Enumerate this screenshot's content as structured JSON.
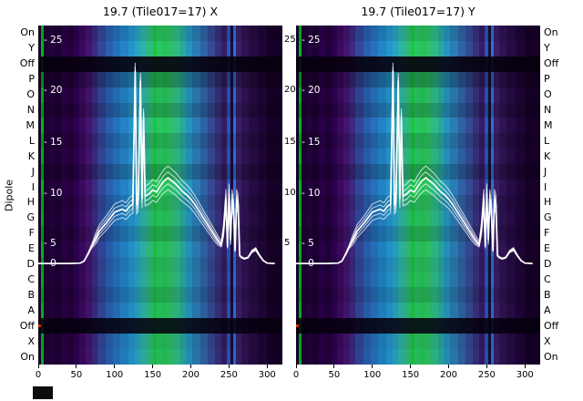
{
  "panels": [
    {
      "title": "19.7 (Tile017=17) X"
    },
    {
      "title": "19.7 (Tile017=17) Y"
    }
  ],
  "y_axis": {
    "label": "Dipole"
  },
  "x_axis": {
    "tick_labels": [
      "0",
      "50",
      "100",
      "150",
      "200",
      "250",
      "300"
    ],
    "tick_values": [
      0,
      50,
      100,
      150,
      200,
      250,
      300
    ],
    "data_max": 320
  },
  "value_axis": {
    "inner_labels": [
      "- 25",
      "- 20",
      "- 15",
      "- 10",
      "- 5",
      "- 0"
    ],
    "gap_labels": [
      "25",
      "20",
      "15",
      "10",
      "5"
    ],
    "tick_values": [
      25,
      20,
      15,
      10,
      5,
      0
    ]
  },
  "chart_data": {
    "type": "heatmap",
    "subtype": "dipole-spectrum-waterfall-with-line-overlay",
    "x_range": [
      0,
      320
    ],
    "value_range": [
      0,
      25
    ],
    "value_tick_y": [
      17,
      72,
      129,
      185,
      240,
      262
    ],
    "rows": [
      {
        "label": "On",
        "shade": 0.1
      },
      {
        "label": "Y",
        "shade": 0.0
      },
      {
        "label": "Off",
        "shade": 0.9,
        "off": true
      },
      {
        "label": "P",
        "shade": 0.28
      },
      {
        "label": "O",
        "shade": 0.06
      },
      {
        "label": "N",
        "shade": 0.2
      },
      {
        "label": "M",
        "shade": 0.0
      },
      {
        "label": "L",
        "shade": 0.14
      },
      {
        "label": "K",
        "shade": 0.04
      },
      {
        "label": "J",
        "shade": 0.22
      },
      {
        "label": "I",
        "shade": 0.0
      },
      {
        "label": "H",
        "shade": 0.12
      },
      {
        "label": "G",
        "shade": 0.05
      },
      {
        "label": "F",
        "shade": 0.18
      },
      {
        "label": "E",
        "shade": 0.03
      },
      {
        "label": "D",
        "shade": 0.1
      },
      {
        "label": "C",
        "shade": 0.06
      },
      {
        "label": "B",
        "shade": 0.16
      },
      {
        "label": "A",
        "shade": 0.05
      },
      {
        "label": "Off",
        "shade": 0.88,
        "off": true
      },
      {
        "label": "X",
        "shade": 0.1
      },
      {
        "label": "On",
        "shade": 0.06
      }
    ],
    "colormap_bands": [
      [
        0,
        4,
        "#160025"
      ],
      [
        4,
        7,
        "#00b42a"
      ],
      [
        7,
        14,
        "#1d0033"
      ],
      [
        14,
        22,
        "#260040"
      ],
      [
        22,
        30,
        "#1d0033"
      ],
      [
        30,
        38,
        "#2a0047"
      ],
      [
        38,
        46,
        "#22003b"
      ],
      [
        46,
        54,
        "#2f0052"
      ],
      [
        54,
        62,
        "#3a0a60"
      ],
      [
        62,
        70,
        "#44156e"
      ],
      [
        70,
        78,
        "#3c2a80"
      ],
      [
        78,
        88,
        "#31479a"
      ],
      [
        88,
        98,
        "#2a5fae"
      ],
      [
        98,
        108,
        "#2472bc"
      ],
      [
        108,
        118,
        "#2383c6"
      ],
      [
        118,
        126,
        "#2495cc"
      ],
      [
        126,
        134,
        "#27a3c4"
      ],
      [
        134,
        142,
        "#2fb2a6"
      ],
      [
        142,
        150,
        "#2fbc78"
      ],
      [
        150,
        155,
        "#18c83c"
      ],
      [
        155,
        162,
        "#2cc268"
      ],
      [
        162,
        170,
        "#25c455"
      ],
      [
        170,
        178,
        "#2fc06a"
      ],
      [
        178,
        186,
        "#2dbb82"
      ],
      [
        186,
        194,
        "#29a8a0"
      ],
      [
        194,
        202,
        "#2595bc"
      ],
      [
        202,
        212,
        "#2a7cb4"
      ],
      [
        212,
        222,
        "#2f62a4"
      ],
      [
        222,
        232,
        "#344a92"
      ],
      [
        232,
        240,
        "#38307c"
      ],
      [
        240,
        247,
        "#341c66"
      ],
      [
        247,
        252,
        "#2a53b4"
      ],
      [
        252,
        256,
        "#1a0a3a"
      ],
      [
        256,
        259,
        "#2f6fd2"
      ],
      [
        259,
        266,
        "#3a1f66"
      ],
      [
        266,
        276,
        "#2f1452"
      ],
      [
        276,
        288,
        "#260c44"
      ],
      [
        288,
        300,
        "#1e0537"
      ],
      [
        300,
        320,
        "#170028"
      ]
    ],
    "overlay_series": {
      "color": "#ffffff",
      "n_traces": 5,
      "x": [
        0,
        20,
        40,
        55,
        60,
        65,
        70,
        75,
        80,
        90,
        100,
        110,
        115,
        120,
        124,
        127,
        129,
        131,
        134,
        136,
        138,
        140,
        145,
        150,
        155,
        160,
        165,
        170,
        175,
        180,
        185,
        190,
        195,
        200,
        205,
        210,
        215,
        220,
        225,
        230,
        235,
        240,
        243,
        246,
        248,
        250,
        252,
        254,
        256,
        258,
        260,
        262,
        264,
        266,
        270,
        275,
        280,
        285,
        290,
        295,
        300,
        310
      ],
      "v": [
        0.2,
        0.2,
        0.2,
        0.3,
        0.8,
        2.5,
        4.5,
        5.5,
        6.3,
        7.2,
        8.2,
        8.5,
        8.3,
        8.8,
        9.0,
        22.0,
        8.9,
        9.3,
        21.0,
        9.6,
        17.5,
        9.8,
        10.0,
        10.4,
        10.2,
        10.8,
        11.3,
        11.6,
        11.3,
        11.0,
        10.6,
        10.2,
        9.9,
        9.5,
        9.0,
        8.4,
        7.8,
        7.2,
        6.6,
        6.0,
        5.4,
        4.8,
        6.5,
        9.5,
        4.5,
        10.0,
        5.5,
        9.5,
        8.5,
        3.5,
        9.5,
        9.0,
        2.2,
        1.8,
        1.4,
        1.7,
        3.2,
        3.8,
        2.2,
        0.9,
        0.3,
        0.2
      ]
    },
    "edge_marks": [
      {
        "panel": 0,
        "row": 19,
        "color": "#d42a00"
      },
      {
        "panel": 1,
        "row": 19,
        "color": "#d42a00"
      }
    ]
  }
}
